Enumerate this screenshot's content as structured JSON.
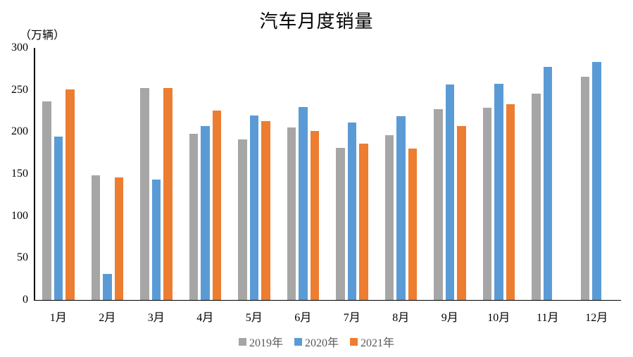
{
  "chart_data": {
    "type": "bar",
    "title": "汽车月度销量",
    "ylabel": "（万辆）",
    "xlabel": "",
    "categories": [
      "1月",
      "2月",
      "3月",
      "4月",
      "5月",
      "6月",
      "7月",
      "8月",
      "9月",
      "10月",
      "11月",
      "12月"
    ],
    "series": [
      {
        "name": "2019年",
        "color": "#A6A6A6",
        "values": [
          236.7,
          148.2,
          252.0,
          198.0,
          191.3,
          205.7,
          180.8,
          195.8,
          227.1,
          228.4,
          245.7,
          265.8
        ]
      },
      {
        "name": "2020年",
        "color": "#5B9BD5",
        "values": [
          194.1,
          31.0,
          143.0,
          207.0,
          219.4,
          230.0,
          211.2,
          218.6,
          256.5,
          257.3,
          277.0,
          283.1
        ]
      },
      {
        "name": "2021年",
        "color": "#ED7D31",
        "values": [
          250.3,
          145.5,
          252.6,
          225.2,
          212.9,
          201.5,
          186.4,
          179.9,
          206.7,
          233.3,
          null,
          null
        ]
      }
    ],
    "ylim": [
      0,
      300
    ],
    "ytick_step": 50,
    "grid": false,
    "legend_position": "bottom",
    "axis_color": "#000000",
    "text_color": "#000000",
    "legend_text_color": "#595959"
  }
}
